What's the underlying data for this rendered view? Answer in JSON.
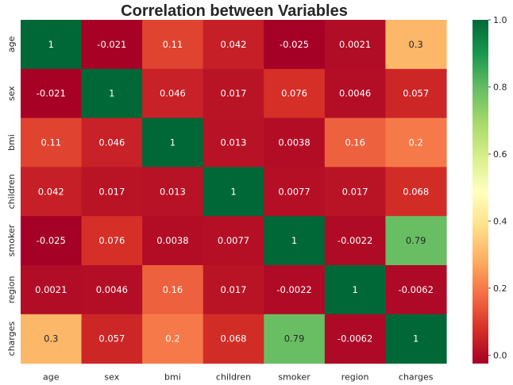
{
  "chart_data": {
    "type": "heatmap",
    "title": "Correlation between Variables",
    "xlabel": "",
    "ylabel": "",
    "x_categories": [
      "age",
      "sex",
      "bmi",
      "children",
      "smoker",
      "region",
      "charges"
    ],
    "y_categories": [
      "age",
      "sex",
      "bmi",
      "children",
      "smoker",
      "region",
      "charges"
    ],
    "values": [
      [
        1,
        -0.021,
        0.11,
        0.042,
        -0.025,
        0.0021,
        0.3
      ],
      [
        -0.021,
        1,
        0.046,
        0.017,
        0.076,
        0.0046,
        0.057
      ],
      [
        0.11,
        0.046,
        1,
        0.013,
        0.0038,
        0.16,
        0.2
      ],
      [
        0.042,
        0.017,
        0.013,
        1,
        0.0077,
        0.017,
        0.068
      ],
      [
        -0.025,
        0.076,
        0.0038,
        0.0077,
        1,
        -0.0022,
        0.79
      ],
      [
        0.0021,
        0.0046,
        0.16,
        0.017,
        -0.0022,
        1,
        -0.0062
      ],
      [
        0.3,
        0.057,
        0.2,
        0.068,
        0.79,
        -0.0062,
        1
      ]
    ],
    "annotations": [
      [
        "1",
        "-0.021",
        "0.11",
        "0.042",
        "-0.025",
        "0.0021",
        "0.3"
      ],
      [
        "-0.021",
        "1",
        "0.046",
        "0.017",
        "0.076",
        "0.0046",
        "0.057"
      ],
      [
        "0.11",
        "0.046",
        "1",
        "0.013",
        "0.0038",
        "0.16",
        "0.2"
      ],
      [
        "0.042",
        "0.017",
        "0.013",
        "1",
        "0.0077",
        "0.017",
        "0.068"
      ],
      [
        "-0.025",
        "0.076",
        "0.0038",
        "0.0077",
        "1",
        "-0.0022",
        "0.79"
      ],
      [
        "0.0021",
        "0.0046",
        "0.16",
        "0.017",
        "-0.0022",
        "1",
        "-0.0062"
      ],
      [
        "0.3",
        "0.057",
        "0.2",
        "0.068",
        "0.79",
        "-0.0062",
        "1"
      ]
    ],
    "colormap": "RdYlGn",
    "vmin": -0.025,
    "vmax": 1,
    "colorbar": {
      "ticks": [
        0.0,
        0.2,
        0.4,
        0.6,
        0.8,
        1.0
      ],
      "tick_labels": [
        "0.0",
        "0.2",
        "0.4",
        "0.6",
        "0.8",
        "1.0"
      ]
    },
    "grid": false,
    "legend": "colorbar-right"
  }
}
